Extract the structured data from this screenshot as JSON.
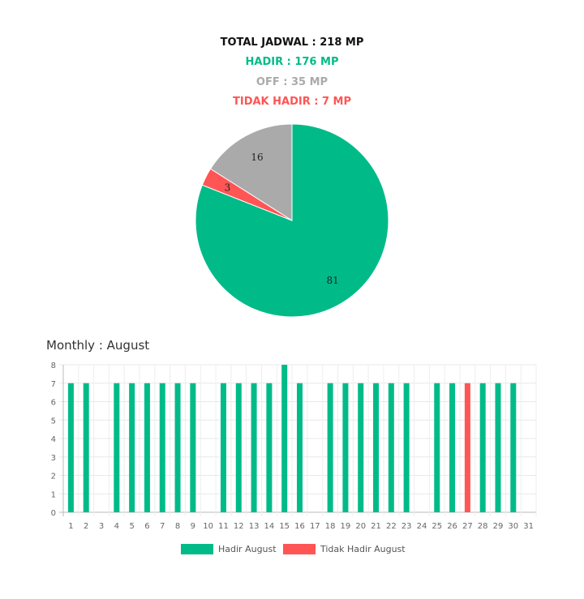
{
  "summary": {
    "total": "TOTAL JADWAL : 218 MP",
    "hadir": "HADIR : 176 MP",
    "off": "OFF : 35 MP",
    "tidak_hadir": "TIDAK HADIR : 7 MP"
  },
  "colors": {
    "total": "#111111",
    "hadir": "#00bb88",
    "off": "#aaaaaa",
    "tidak_hadir": "#ff5555"
  },
  "chart_data": [
    {
      "type": "pie",
      "slices": [
        {
          "value": 81,
          "label": "81",
          "color": "#00bb88"
        },
        {
          "value": 3,
          "label": "3",
          "color": "#ff5555"
        },
        {
          "value": 16,
          "label": "16",
          "color": "#aaaaaa"
        }
      ]
    },
    {
      "type": "bar",
      "title": "Monthly : August",
      "categories": [
        "1",
        "2",
        "3",
        "4",
        "5",
        "6",
        "7",
        "8",
        "9",
        "10",
        "11",
        "12",
        "13",
        "14",
        "15",
        "16",
        "17",
        "18",
        "19",
        "20",
        "21",
        "22",
        "23",
        "24",
        "25",
        "26",
        "27",
        "28",
        "29",
        "30",
        "31"
      ],
      "ylim": [
        0,
        8
      ],
      "yticks": [
        "0",
        "1",
        "2",
        "3",
        "4",
        "5",
        "6",
        "7",
        "8"
      ],
      "grid": true,
      "legend": "bottom",
      "series": [
        {
          "name": "Hadir August",
          "color": "#00bb88",
          "values": [
            7,
            7,
            0,
            7,
            7,
            7,
            7,
            7,
            7,
            0,
            7,
            7,
            7,
            7,
            8,
            7,
            0,
            7,
            7,
            7,
            7,
            7,
            7,
            0,
            7,
            7,
            0,
            7,
            7,
            7,
            0
          ]
        },
        {
          "name": "Tidak Hadir August",
          "color": "#ff5555",
          "values": [
            0,
            0,
            0,
            0,
            0,
            0,
            0,
            0,
            0,
            0,
            0,
            0,
            0,
            0,
            0,
            0,
            0,
            0,
            0,
            0,
            0,
            0,
            0,
            0,
            0,
            0,
            7,
            0,
            0,
            0,
            0
          ]
        }
      ]
    }
  ]
}
